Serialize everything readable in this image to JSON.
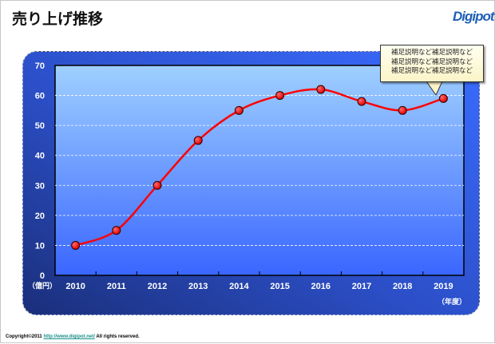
{
  "header": {
    "title": "売り上げ推移",
    "logo_text": "Digipot"
  },
  "chart_data": {
    "type": "line",
    "categories": [
      "2010",
      "2011",
      "2012",
      "2013",
      "2014",
      "2015",
      "2016",
      "2017",
      "2018",
      "2019"
    ],
    "values": [
      10,
      15,
      30,
      45,
      55,
      60,
      62,
      58,
      55,
      59
    ],
    "title": "売り上げ推移",
    "xlabel": "（年度）",
    "ylabel": "（億円）",
    "ylim": [
      0,
      70
    ],
    "yticks": [
      "0",
      "10",
      "20",
      "30",
      "40",
      "50",
      "60",
      "70"
    ],
    "grid": true,
    "line_color": "#ff0000",
    "marker_color": "#e00000"
  },
  "callout": {
    "lines": [
      "補足説明など補足説明など",
      "補足説明など補足説明など",
      "補足説明など補足説明など"
    ]
  },
  "footer": {
    "prefix": "Copyright©2011 ",
    "link": "http://www.digipot.net/",
    "suffix": " All rights reserved."
  }
}
